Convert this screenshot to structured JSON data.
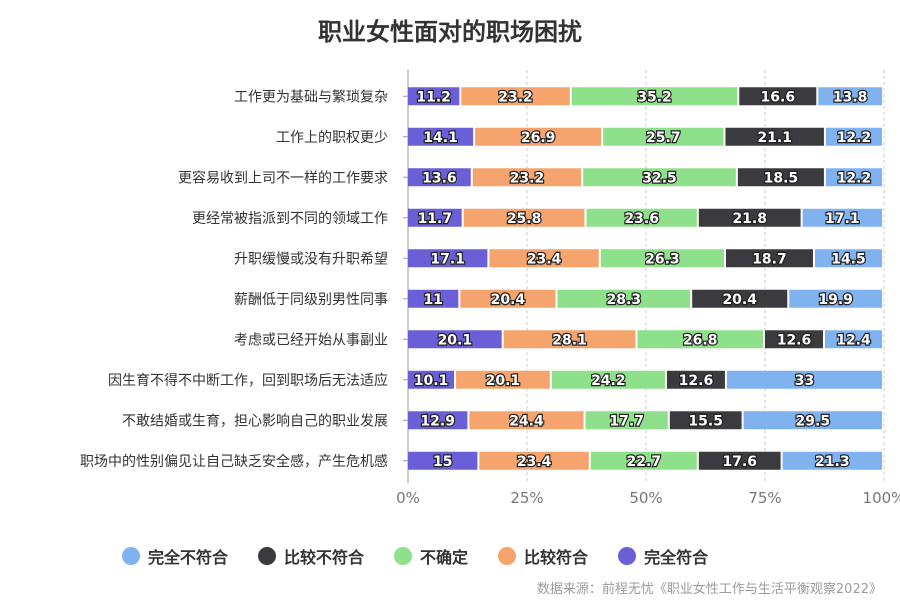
{
  "chart_data": {
    "type": "bar",
    "orientation": "horizontal",
    "stacked": "percent",
    "title": "职业女性面对的职场困扰",
    "categories": [
      "工作更为基础与繁琐复杂",
      "工作上的职权更少",
      "更容易收到上司不一样的工作要求",
      "更经常被指派到不同的领域工作",
      "升职缓慢或没有升职希望",
      "薪酬低于同级别男性同事",
      "考虑或已经开始从事副业",
      "因生育不得不中断工作，回到职场后无法适应",
      "不敢结婚或生育，担心影响自己的职业发展",
      "职场中的性别偏见让自己缺乏安全感，产生危机感"
    ],
    "series": [
      {
        "name": "完全符合",
        "color": "#6a5fd6",
        "values": [
          11.2,
          14.1,
          13.6,
          11.7,
          17.1,
          11,
          20.1,
          10.1,
          12.9,
          15
        ]
      },
      {
        "name": "比较符合",
        "color": "#f4a46c",
        "values": [
          23.2,
          26.9,
          23.2,
          25.8,
          23.4,
          20.4,
          28.1,
          20.1,
          24.4,
          23.4
        ]
      },
      {
        "name": "不确定",
        "color": "#8fe08a",
        "values": [
          35.2,
          25.7,
          32.5,
          23.6,
          26.3,
          28.3,
          26.8,
          24.2,
          17.7,
          22.7
        ]
      },
      {
        "name": "比较不符合",
        "color": "#3b3b3f",
        "values": [
          16.6,
          21.1,
          18.5,
          21.8,
          18.7,
          20.4,
          12.6,
          12.6,
          15.5,
          17.6
        ]
      },
      {
        "name": "完全不符合",
        "color": "#7fb2ee",
        "values": [
          13.8,
          12.2,
          12.2,
          17.1,
          14.5,
          19.9,
          12.4,
          33,
          29.5,
          21.3
        ]
      }
    ],
    "legend_order": [
      "完全不符合",
      "比较不符合",
      "不确定",
      "比较符合",
      "完全符合"
    ],
    "x_ticks": [
      "0%",
      "25%",
      "50%",
      "75%",
      "100%"
    ],
    "xlim": [
      0,
      100
    ],
    "grid": "vertical-dashed",
    "legend_position": "bottom"
  },
  "source": "数据来源：前程无忧《职业女性工作与生活平衡观察2022》"
}
